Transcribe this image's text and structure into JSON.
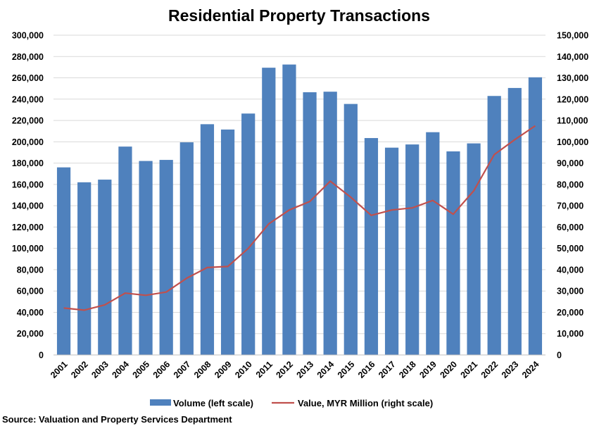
{
  "chart_data": {
    "type": "bar+line",
    "title": "Residential Property Transactions",
    "categories": [
      "2001",
      "2002",
      "2003",
      "2004",
      "2005",
      "2006",
      "2007",
      "2008",
      "2009",
      "2010",
      "2011",
      "2012",
      "2013",
      "2014",
      "2015",
      "2016",
      "2017",
      "2018",
      "2019",
      "2020",
      "2021",
      "2022",
      "2023",
      "2024"
    ],
    "series": [
      {
        "name": "Volume (left scale)",
        "type": "bar",
        "axis": "left",
        "color": "#4F81BD",
        "values": [
          176000,
          162000,
          164500,
          195500,
          182000,
          183000,
          199500,
          216500,
          211500,
          226500,
          269500,
          272500,
          246500,
          247000,
          235500,
          203500,
          194500,
          197500,
          209000,
          191000,
          198500,
          243000,
          250500,
          260500
        ]
      },
      {
        "name": "Value, MYR Million (right scale)",
        "type": "line",
        "axis": "right",
        "color": "#C0504D",
        "values": [
          22000,
          21000,
          23500,
          29000,
          28000,
          29500,
          36000,
          41000,
          41500,
          50000,
          61500,
          68000,
          72000,
          81500,
          74000,
          65500,
          68000,
          69000,
          72500,
          66000,
          77000,
          94000,
          101000,
          107500
        ]
      }
    ],
    "y_left": {
      "min": 0,
      "max": 300000,
      "step": 20000,
      "tick_labels": [
        "0",
        "20,000",
        "40,000",
        "60,000",
        "80,000",
        "100,000",
        "120,000",
        "140,000",
        "160,000",
        "180,000",
        "200,000",
        "220,000",
        "240,000",
        "260,000",
        "280,000",
        "300,000"
      ]
    },
    "y_right": {
      "min": 0,
      "max": 150000,
      "step": 10000,
      "tick_labels": [
        "0",
        "10,000",
        "20,000",
        "30,000",
        "40,000",
        "50,000",
        "60,000",
        "70,000",
        "80,000",
        "90,000",
        "100,000",
        "110,000",
        "120,000",
        "130,000",
        "140,000",
        "150,000"
      ]
    },
    "grid": true,
    "legend_position": "bottom",
    "source": "Source: Valuation and Property Services Department"
  }
}
